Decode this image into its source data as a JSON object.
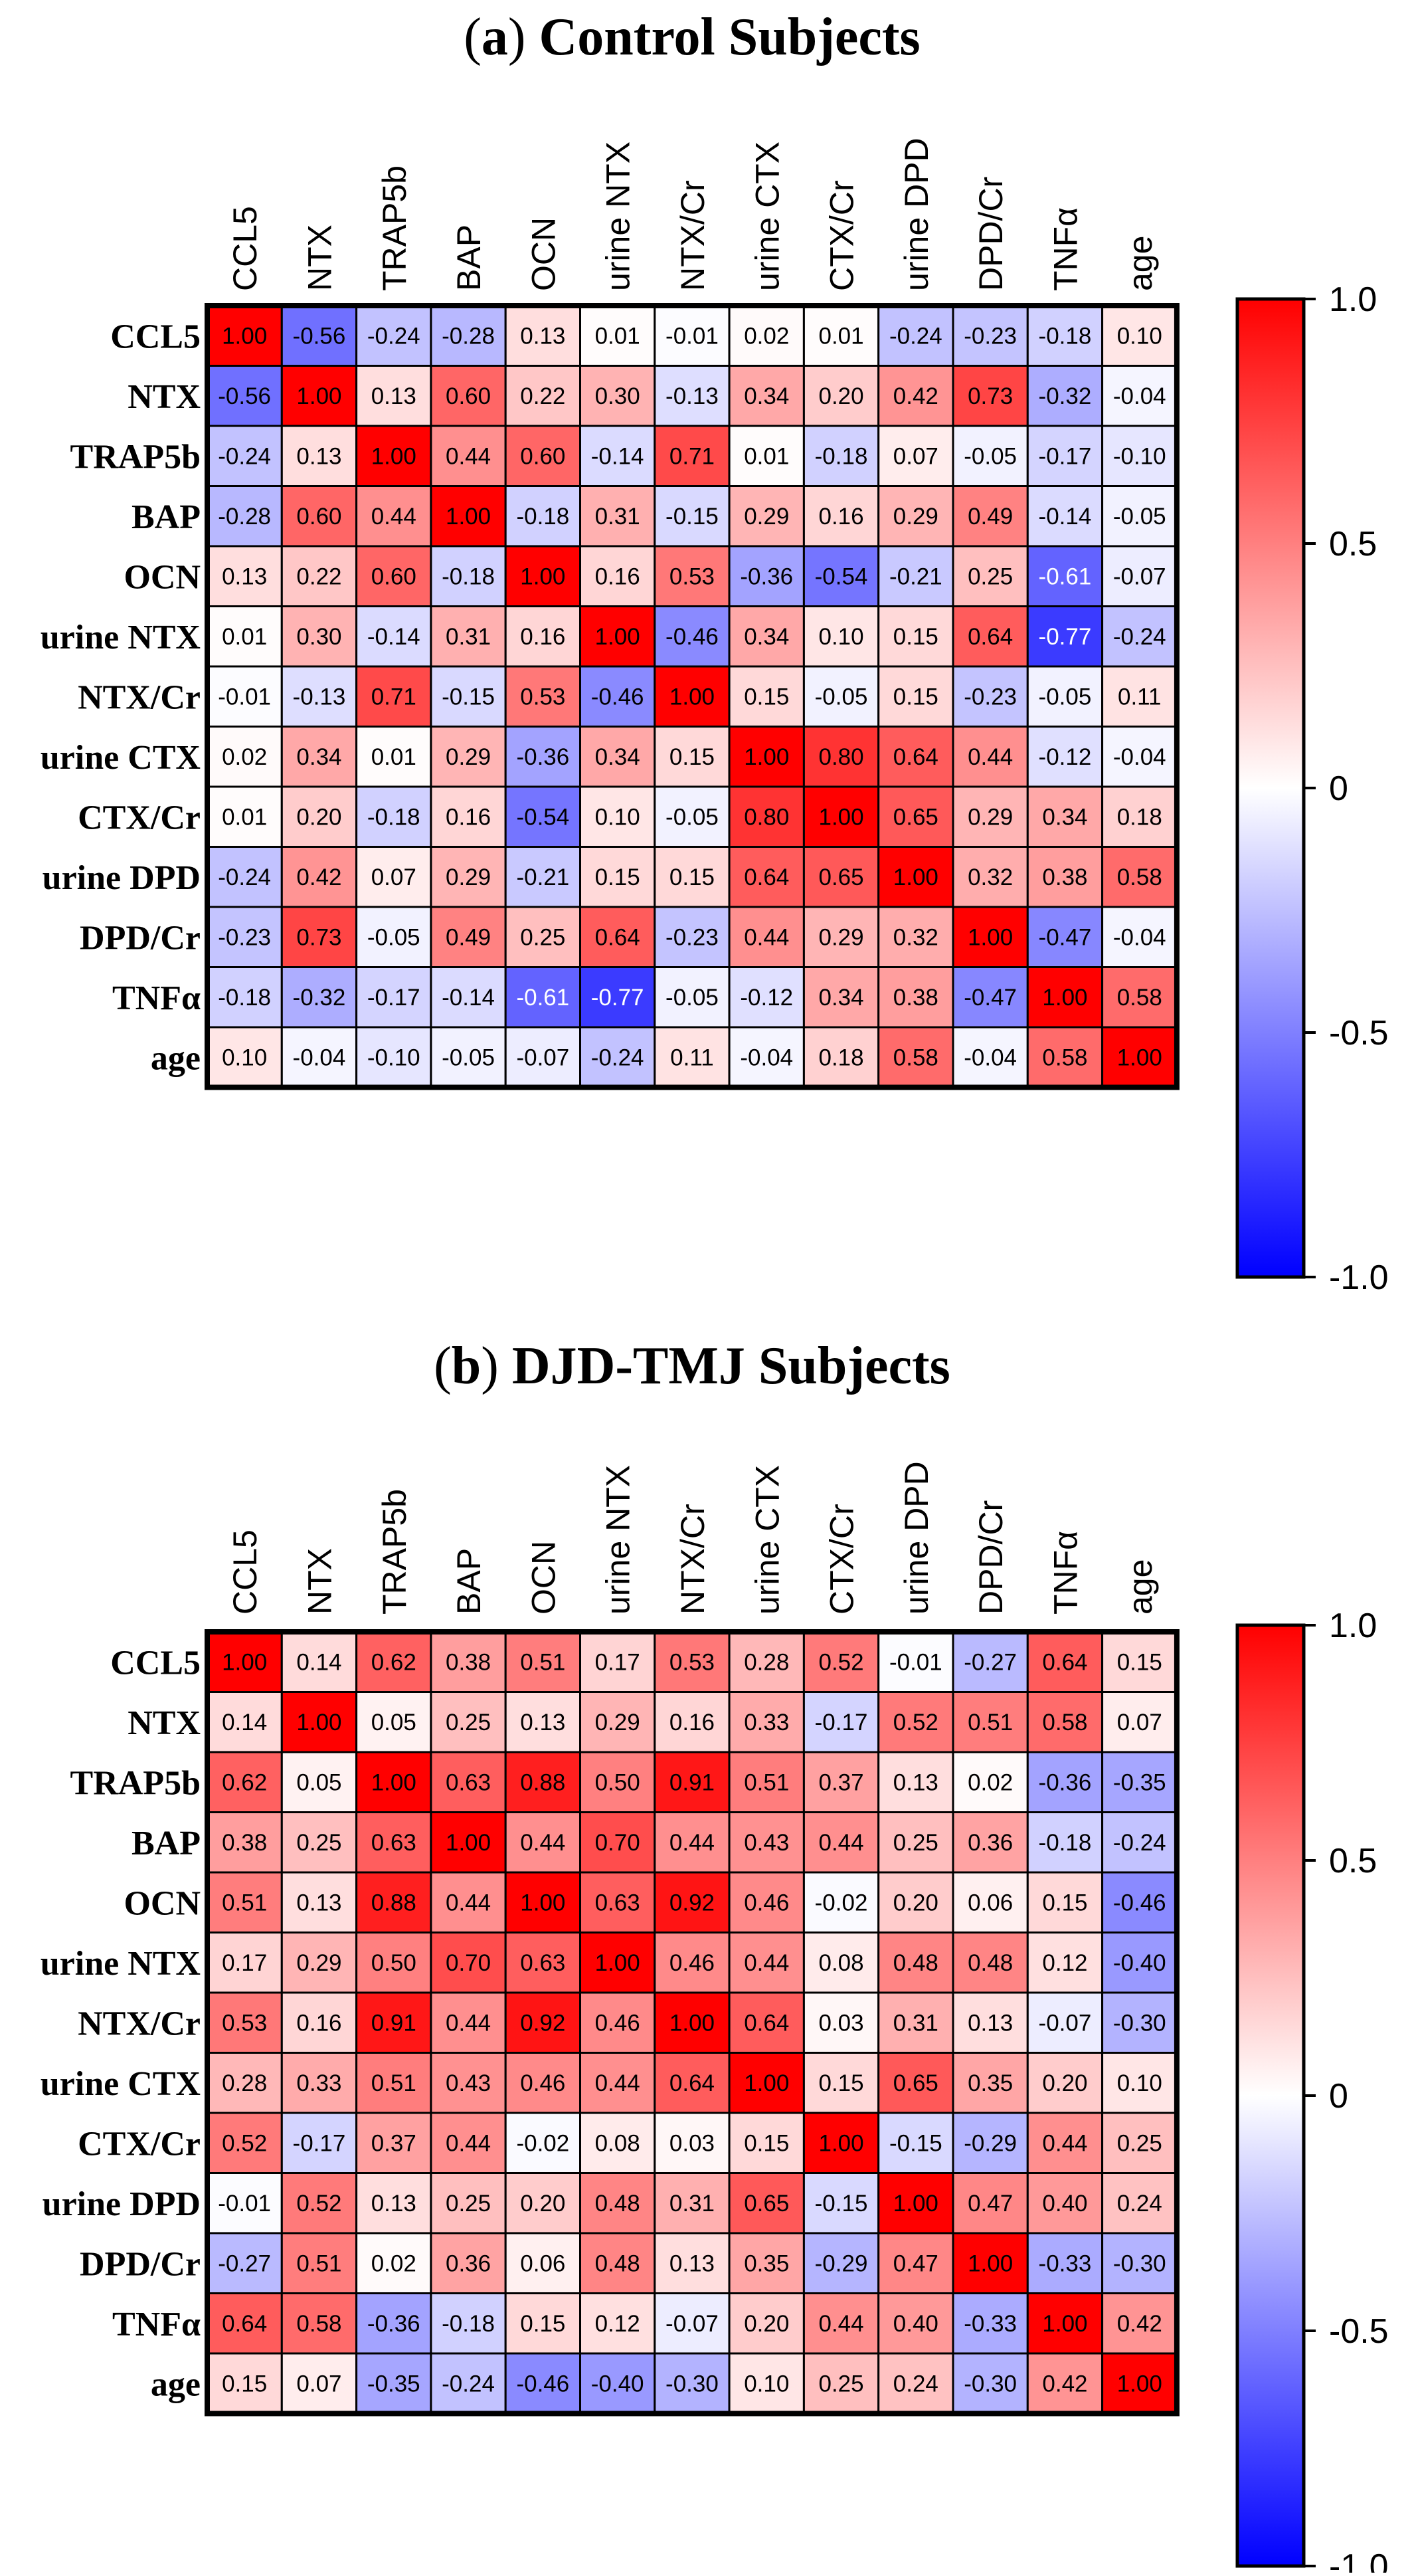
{
  "colorscale": {
    "min": -1.0,
    "max": 1.0,
    "low_color": "#0000ff",
    "mid_color": "#ffffff",
    "high_color": "#ff0000",
    "ticks": [
      "1.0",
      "0.5",
      "0",
      "-0.5",
      "-1.0"
    ],
    "tick_values": [
      1.0,
      0.5,
      0,
      -0.5,
      -1.0
    ]
  },
  "chart_data": [
    {
      "type": "heatmap",
      "panel_label": "(a)",
      "title": "Control Subjects",
      "row_labels": [
        "CCL5",
        "NTX",
        "TRAP5b",
        "BAP",
        "OCN",
        "urine NTX",
        "NTX/Cr",
        "urine CTX",
        "CTX/Cr",
        "urine DPD",
        "DPD/Cr",
        "TNFα",
        "age"
      ],
      "col_labels": [
        "CCL5",
        "NTX",
        "TRAP5b",
        "BAP",
        "OCN",
        "urine NTX",
        "NTX/Cr",
        "urine CTX",
        "CTX/Cr",
        "urine DPD",
        "DPD/Cr",
        "TNFα",
        "age"
      ],
      "values": [
        [
          "1.00",
          "-0.56",
          "-0.24",
          "-0.28",
          "0.13",
          "0.01",
          "-0.01",
          "0.02",
          "0.01",
          "-0.24",
          "-0.23",
          "-0.18",
          "0.10"
        ],
        [
          "-0.56",
          "1.00",
          "0.13",
          "0.60",
          "0.22",
          "0.30",
          "-0.13",
          "0.34",
          "0.20",
          "0.42",
          "0.73",
          "-0.32",
          "-0.04"
        ],
        [
          "-0.24",
          "0.13",
          "1.00",
          "0.44",
          "0.60",
          "-0.14",
          "0.71",
          "0.01",
          "-0.18",
          "0.07",
          "-0.05",
          "-0.17",
          "-0.10"
        ],
        [
          "-0.28",
          "0.60",
          "0.44",
          "1.00",
          "-0.18",
          "0.31",
          "-0.15",
          "0.29",
          "0.16",
          "0.29",
          "0.49",
          "-0.14",
          "-0.05"
        ],
        [
          "0.13",
          "0.22",
          "0.60",
          "-0.18",
          "1.00",
          "0.16",
          "0.53",
          "-0.36",
          "-0.54",
          "-0.21",
          "0.25",
          "-0.61",
          "-0.07"
        ],
        [
          "0.01",
          "0.30",
          "-0.14",
          "0.31",
          "0.16",
          "1.00",
          "-0.46",
          "0.34",
          "0.10",
          "0.15",
          "0.64",
          "-0.77",
          "-0.24"
        ],
        [
          "-0.01",
          "-0.13",
          "0.71",
          "-0.15",
          "0.53",
          "-0.46",
          "1.00",
          "0.15",
          "-0.05",
          "0.15",
          "-0.23",
          "-0.05",
          "0.11"
        ],
        [
          "0.02",
          "0.34",
          "0.01",
          "0.29",
          "-0.36",
          "0.34",
          "0.15",
          "1.00",
          "0.80",
          "0.64",
          "0.44",
          "-0.12",
          "-0.04"
        ],
        [
          "0.01",
          "0.20",
          "-0.18",
          "0.16",
          "-0.54",
          "0.10",
          "-0.05",
          "0.80",
          "1.00",
          "0.65",
          "0.29",
          "0.34",
          "0.18"
        ],
        [
          "-0.24",
          "0.42",
          "0.07",
          "0.29",
          "-0.21",
          "0.15",
          "0.15",
          "0.64",
          "0.65",
          "1.00",
          "0.32",
          "0.38",
          "0.58"
        ],
        [
          "-0.23",
          "0.73",
          "-0.05",
          "0.49",
          "0.25",
          "0.64",
          "-0.23",
          "0.44",
          "0.29",
          "0.32",
          "1.00",
          "-0.47",
          "-0.04"
        ],
        [
          "-0.18",
          "-0.32",
          "-0.17",
          "-0.14",
          "-0.61",
          "-0.77",
          "-0.05",
          "-0.12",
          "0.34",
          "0.38",
          "-0.47",
          "1.00",
          "0.58"
        ],
        [
          "0.10",
          "-0.04",
          "-0.10",
          "-0.05",
          "-0.07",
          "-0.24",
          "0.11",
          "-0.04",
          "0.18",
          "0.58",
          "-0.04",
          "0.58",
          "1.00"
        ]
      ]
    },
    {
      "type": "heatmap",
      "panel_label": "(b)",
      "title": "DJD-TMJ Subjects",
      "row_labels": [
        "CCL5",
        "NTX",
        "TRAP5b",
        "BAP",
        "OCN",
        "urine NTX",
        "NTX/Cr",
        "urine CTX",
        "CTX/Cr",
        "urine DPD",
        "DPD/Cr",
        "TNFα",
        "age"
      ],
      "col_labels": [
        "CCL5",
        "NTX",
        "TRAP5b",
        "BAP",
        "OCN",
        "urine NTX",
        "NTX/Cr",
        "urine CTX",
        "CTX/Cr",
        "urine DPD",
        "DPD/Cr",
        "TNFα",
        "age"
      ],
      "values": [
        [
          "1.00",
          "0.14",
          "0.62",
          "0.38",
          "0.51",
          "0.17",
          "0.53",
          "0.28",
          "0.52",
          "-0.01",
          "-0.27",
          "0.64",
          "0.15"
        ],
        [
          "0.14",
          "1.00",
          "0.05",
          "0.25",
          "0.13",
          "0.29",
          "0.16",
          "0.33",
          "-0.17",
          "0.52",
          "0.51",
          "0.58",
          "0.07"
        ],
        [
          "0.62",
          "0.05",
          "1.00",
          "0.63",
          "0.88",
          "0.50",
          "0.91",
          "0.51",
          "0.37",
          "0.13",
          "0.02",
          "-0.36",
          "-0.35"
        ],
        [
          "0.38",
          "0.25",
          "0.63",
          "1.00",
          "0.44",
          "0.70",
          "0.44",
          "0.43",
          "0.44",
          "0.25",
          "0.36",
          "-0.18",
          "-0.24"
        ],
        [
          "0.51",
          "0.13",
          "0.88",
          "0.44",
          "1.00",
          "0.63",
          "0.92",
          "0.46",
          "-0.02",
          "0.20",
          "0.06",
          "0.15",
          "-0.46"
        ],
        [
          "0.17",
          "0.29",
          "0.50",
          "0.70",
          "0.63",
          "1.00",
          "0.46",
          "0.44",
          "0.08",
          "0.48",
          "0.48",
          "0.12",
          "-0.40"
        ],
        [
          "0.53",
          "0.16",
          "0.91",
          "0.44",
          "0.92",
          "0.46",
          "1.00",
          "0.64",
          "0.03",
          "0.31",
          "0.13",
          "-0.07",
          "-0.30"
        ],
        [
          "0.28",
          "0.33",
          "0.51",
          "0.43",
          "0.46",
          "0.44",
          "0.64",
          "1.00",
          "0.15",
          "0.65",
          "0.35",
          "0.20",
          "0.10"
        ],
        [
          "0.52",
          "-0.17",
          "0.37",
          "0.44",
          "-0.02",
          "0.08",
          "0.03",
          "0.15",
          "1.00",
          "-0.15",
          "-0.29",
          "0.44",
          "0.25"
        ],
        [
          "-0.01",
          "0.52",
          "0.13",
          "0.25",
          "0.20",
          "0.48",
          "0.31",
          "0.65",
          "-0.15",
          "1.00",
          "0.47",
          "0.40",
          "0.24"
        ],
        [
          "-0.27",
          "0.51",
          "0.02",
          "0.36",
          "0.06",
          "0.48",
          "0.13",
          "0.35",
          "-0.29",
          "0.47",
          "1.00",
          "-0.33",
          "-0.30"
        ],
        [
          "0.64",
          "0.58",
          "-0.36",
          "-0.18",
          "0.15",
          "0.12",
          "-0.07",
          "0.20",
          "0.44",
          "0.40",
          "-0.33",
          "1.00",
          "0.42"
        ],
        [
          "0.15",
          "0.07",
          "-0.35",
          "-0.24",
          "-0.46",
          "-0.40",
          "-0.30",
          "0.10",
          "0.25",
          "0.24",
          "-0.30",
          "0.42",
          "1.00"
        ]
      ]
    }
  ]
}
